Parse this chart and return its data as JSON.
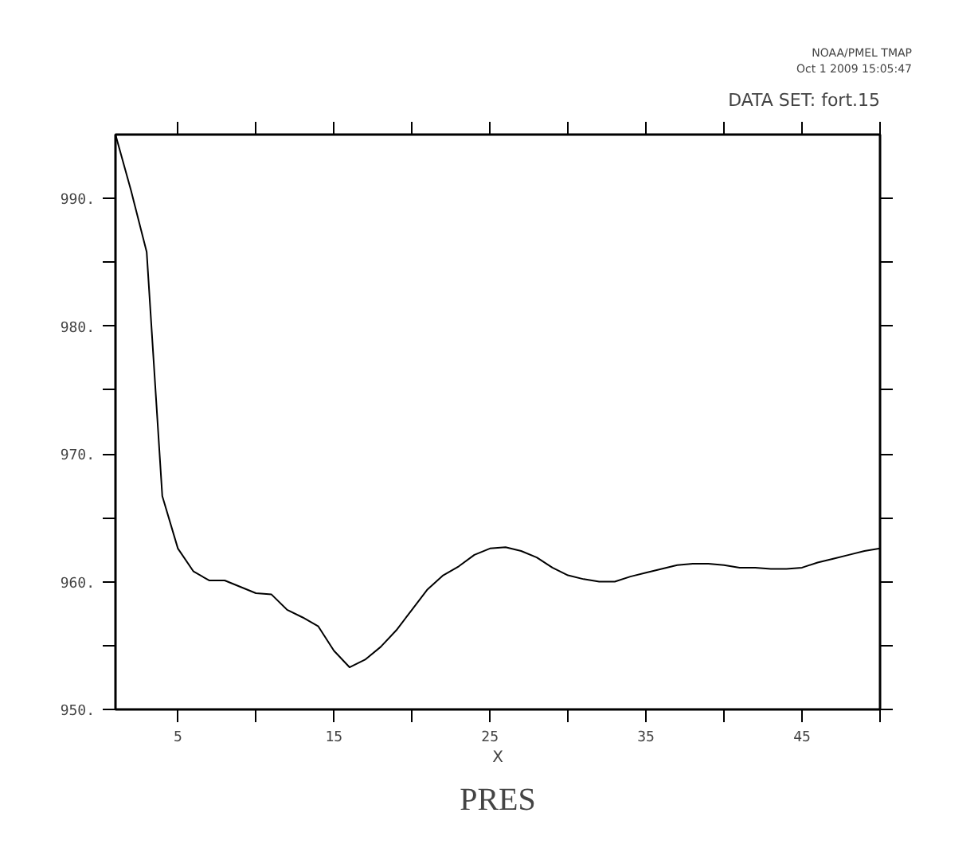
{
  "chart_data": {
    "type": "line",
    "title": "PRES",
    "xlabel": "X",
    "annotations": [
      "NOAA/PMEL TMAP",
      "Oct 1 2009 15:05:47",
      "DATA SET: fort.15"
    ],
    "x": [
      1,
      2,
      3,
      4,
      5,
      6,
      7,
      8,
      9,
      10,
      11,
      12,
      13,
      14,
      15,
      16,
      17,
      18,
      19,
      20,
      21,
      22,
      23,
      24,
      25,
      26,
      27,
      28,
      29,
      30,
      31,
      32,
      33,
      34,
      35,
      36,
      37,
      38,
      39,
      40,
      41,
      42,
      43,
      44,
      45,
      46,
      47,
      48,
      49,
      50
    ],
    "series": [
      {
        "color": "#000000",
        "values": [
          995,
          990.6,
          985.8,
          966.7,
          962.6,
          960.8,
          960.1,
          960.1,
          959.6,
          959.1,
          959.0,
          957.8,
          957.2,
          956.5,
          954.6,
          953.3,
          953.9,
          954.9,
          956.2,
          957.8,
          959.4,
          960.5,
          961.2,
          962.1,
          962.6,
          962.7,
          962.4,
          961.9,
          961.1,
          960.5,
          960.2,
          960.0,
          960.0,
          960.4,
          960.7,
          961.0,
          961.3,
          961.4,
          961.4,
          961.3,
          961.1,
          961.1,
          961.0,
          961.0,
          961.1,
          961.5,
          961.8,
          962.1,
          962.4,
          962.6
        ]
      }
    ],
    "xlim": [
      1,
      50
    ],
    "ylim": [
      950,
      995
    ],
    "xticks": [
      5,
      {
        "value": 10,
        "label": null
      },
      15,
      {
        "value": 20,
        "label": null
      },
      25,
      {
        "value": 30,
        "label": null
      },
      35,
      {
        "value": 40,
        "label": null
      },
      45,
      {
        "value": 50,
        "label": null
      }
    ],
    "yticks": [
      {
        "value": 950,
        "label": "950."
      },
      {
        "value": 955,
        "label": null
      },
      {
        "value": 960,
        "label": "960."
      },
      {
        "value": 965,
        "label": null
      },
      {
        "value": 970,
        "label": "970."
      },
      {
        "value": 975,
        "label": null
      },
      {
        "value": 980,
        "label": "980."
      },
      {
        "value": 985,
        "label": null
      },
      {
        "value": 990,
        "label": "990."
      }
    ],
    "marker": "none",
    "line_style": "solid"
  }
}
